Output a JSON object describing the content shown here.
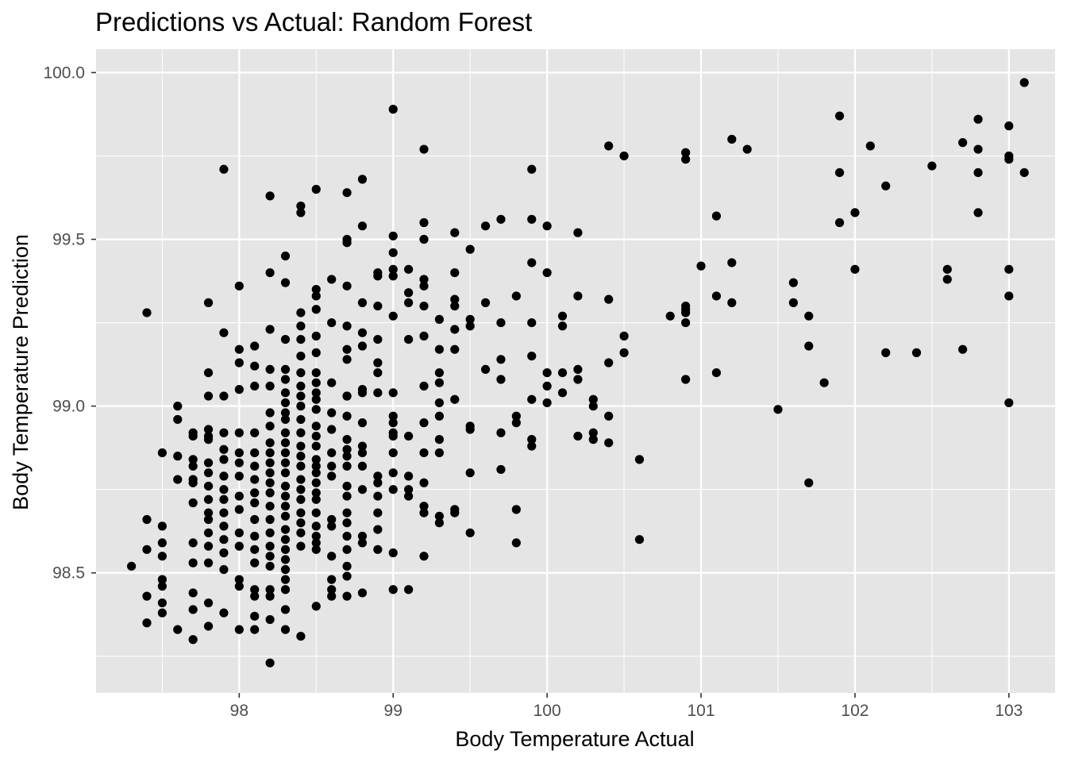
{
  "chart_data": {
    "type": "scatter",
    "title": "Predictions vs Actual: Random Forest",
    "xlabel": "Body Temperature Actual",
    "ylabel": "Body Temperature Prediction",
    "xlim": [
      97.07,
      103.3
    ],
    "ylim": [
      98.14,
      100.07
    ],
    "x_ticks": [
      98,
      99,
      100,
      101,
      102,
      103
    ],
    "x_tick_labels": [
      "98",
      "99",
      "100",
      "101",
      "102",
      "103"
    ],
    "y_ticks": [
      98.5,
      99.0,
      99.5,
      100.0
    ],
    "y_tick_labels": [
      "98.5",
      "99.0",
      "99.5",
      "100.0"
    ],
    "grid": true,
    "background": "#e5e5e5",
    "grid_color": "#ffffff",
    "point_color": "#000000",
    "points": [
      [
        97.3,
        98.52
      ],
      [
        97.4,
        99.28
      ],
      [
        97.4,
        98.66
      ],
      [
        97.4,
        98.57
      ],
      [
        97.4,
        98.43
      ],
      [
        97.4,
        98.35
      ],
      [
        97.5,
        98.86
      ],
      [
        97.5,
        98.64
      ],
      [
        97.5,
        98.59
      ],
      [
        97.5,
        98.55
      ],
      [
        97.5,
        98.48
      ],
      [
        97.5,
        98.46
      ],
      [
        97.5,
        98.41
      ],
      [
        97.5,
        98.38
      ],
      [
        97.6,
        99.0
      ],
      [
        97.6,
        98.96
      ],
      [
        97.6,
        98.85
      ],
      [
        97.6,
        98.78
      ],
      [
        97.6,
        98.33
      ],
      [
        97.7,
        98.92
      ],
      [
        97.7,
        98.91
      ],
      [
        97.7,
        98.84
      ],
      [
        97.7,
        98.82
      ],
      [
        97.7,
        98.78
      ],
      [
        97.7,
        98.77
      ],
      [
        97.7,
        98.71
      ],
      [
        97.7,
        98.59
      ],
      [
        97.7,
        98.53
      ],
      [
        97.7,
        98.44
      ],
      [
        97.7,
        98.39
      ],
      [
        97.7,
        98.3
      ],
      [
        97.8,
        99.31
      ],
      [
        97.8,
        99.1
      ],
      [
        97.8,
        99.03
      ],
      [
        97.8,
        98.93
      ],
      [
        97.8,
        98.91
      ],
      [
        97.8,
        98.9
      ],
      [
        97.8,
        98.83
      ],
      [
        97.8,
        98.8
      ],
      [
        97.8,
        98.76
      ],
      [
        97.8,
        98.72
      ],
      [
        97.8,
        98.68
      ],
      [
        97.8,
        98.66
      ],
      [
        97.8,
        98.62
      ],
      [
        97.8,
        98.58
      ],
      [
        97.8,
        98.53
      ],
      [
        97.8,
        98.41
      ],
      [
        97.8,
        98.34
      ],
      [
        97.9,
        99.71
      ],
      [
        97.9,
        99.22
      ],
      [
        97.9,
        99.03
      ],
      [
        97.9,
        98.92
      ],
      [
        97.9,
        98.87
      ],
      [
        97.9,
        98.84
      ],
      [
        97.9,
        98.79
      ],
      [
        97.9,
        98.75
      ],
      [
        97.9,
        98.72
      ],
      [
        97.9,
        98.68
      ],
      [
        97.9,
        98.64
      ],
      [
        97.9,
        98.6
      ],
      [
        97.9,
        98.56
      ],
      [
        97.9,
        98.51
      ],
      [
        97.9,
        98.38
      ],
      [
        98.0,
        99.36
      ],
      [
        98.0,
        99.17
      ],
      [
        98.0,
        99.13
      ],
      [
        98.0,
        99.05
      ],
      [
        98.0,
        98.92
      ],
      [
        98.0,
        98.86
      ],
      [
        98.0,
        98.83
      ],
      [
        98.0,
        98.79
      ],
      [
        98.0,
        98.73
      ],
      [
        98.0,
        98.69
      ],
      [
        98.0,
        98.62
      ],
      [
        98.0,
        98.58
      ],
      [
        98.0,
        98.48
      ],
      [
        98.0,
        98.46
      ],
      [
        98.0,
        98.33
      ],
      [
        98.1,
        99.18
      ],
      [
        98.1,
        99.12
      ],
      [
        98.1,
        99.06
      ],
      [
        98.1,
        98.92
      ],
      [
        98.1,
        98.86
      ],
      [
        98.1,
        98.82
      ],
      [
        98.1,
        98.78
      ],
      [
        98.1,
        98.74
      ],
      [
        98.1,
        98.71
      ],
      [
        98.1,
        98.66
      ],
      [
        98.1,
        98.61
      ],
      [
        98.1,
        98.57
      ],
      [
        98.1,
        98.53
      ],
      [
        98.1,
        98.45
      ],
      [
        98.1,
        98.43
      ],
      [
        98.1,
        98.37
      ],
      [
        98.1,
        98.33
      ],
      [
        98.2,
        99.63
      ],
      [
        98.2,
        99.4
      ],
      [
        98.2,
        99.23
      ],
      [
        98.2,
        99.11
      ],
      [
        98.2,
        99.06
      ],
      [
        98.2,
        98.98
      ],
      [
        98.2,
        98.94
      ],
      [
        98.2,
        98.89
      ],
      [
        98.2,
        98.86
      ],
      [
        98.2,
        98.83
      ],
      [
        98.2,
        98.8
      ],
      [
        98.2,
        98.77
      ],
      [
        98.2,
        98.74
      ],
      [
        98.2,
        98.7
      ],
      [
        98.2,
        98.66
      ],
      [
        98.2,
        98.62
      ],
      [
        98.2,
        98.58
      ],
      [
        98.2,
        98.55
      ],
      [
        98.2,
        98.52
      ],
      [
        98.2,
        98.45
      ],
      [
        98.2,
        98.43
      ],
      [
        98.2,
        98.36
      ],
      [
        98.2,
        98.23
      ],
      [
        98.3,
        99.45
      ],
      [
        98.3,
        99.37
      ],
      [
        98.3,
        99.2
      ],
      [
        98.3,
        99.11
      ],
      [
        98.3,
        99.08
      ],
      [
        98.3,
        99.04
      ],
      [
        98.3,
        99.01
      ],
      [
        98.3,
        98.98
      ],
      [
        98.3,
        98.96
      ],
      [
        98.3,
        98.92
      ],
      [
        98.3,
        98.89
      ],
      [
        98.3,
        98.86
      ],
      [
        98.3,
        98.83
      ],
      [
        98.3,
        98.8
      ],
      [
        98.3,
        98.76
      ],
      [
        98.3,
        98.73
      ],
      [
        98.3,
        98.7
      ],
      [
        98.3,
        98.67
      ],
      [
        98.3,
        98.63
      ],
      [
        98.3,
        98.6
      ],
      [
        98.3,
        98.57
      ],
      [
        98.3,
        98.54
      ],
      [
        98.3,
        98.51
      ],
      [
        98.3,
        98.48
      ],
      [
        98.3,
        98.45
      ],
      [
        98.3,
        98.39
      ],
      [
        98.3,
        98.33
      ],
      [
        98.4,
        99.6
      ],
      [
        98.4,
        99.58
      ],
      [
        98.4,
        99.28
      ],
      [
        98.4,
        99.24
      ],
      [
        98.4,
        99.2
      ],
      [
        98.4,
        99.15
      ],
      [
        98.4,
        99.1
      ],
      [
        98.4,
        99.06
      ],
      [
        98.4,
        99.03
      ],
      [
        98.4,
        99.0
      ],
      [
        98.4,
        98.96
      ],
      [
        98.4,
        98.92
      ],
      [
        98.4,
        98.88
      ],
      [
        98.4,
        98.85
      ],
      [
        98.4,
        98.82
      ],
      [
        98.4,
        98.78
      ],
      [
        98.4,
        98.75
      ],
      [
        98.4,
        98.72
      ],
      [
        98.4,
        98.68
      ],
      [
        98.4,
        98.65
      ],
      [
        98.4,
        98.62
      ],
      [
        98.4,
        98.58
      ],
      [
        98.4,
        98.31
      ],
      [
        98.5,
        99.65
      ],
      [
        98.5,
        99.35
      ],
      [
        98.5,
        99.33
      ],
      [
        98.5,
        99.29
      ],
      [
        98.5,
        99.21
      ],
      [
        98.5,
        99.16
      ],
      [
        98.5,
        99.1
      ],
      [
        98.5,
        99.07
      ],
      [
        98.5,
        99.04
      ],
      [
        98.5,
        99.02
      ],
      [
        98.5,
        98.99
      ],
      [
        98.5,
        98.94
      ],
      [
        98.5,
        98.91
      ],
      [
        98.5,
        98.88
      ],
      [
        98.5,
        98.84
      ],
      [
        98.5,
        98.82
      ],
      [
        98.5,
        98.8
      ],
      [
        98.5,
        98.77
      ],
      [
        98.5,
        98.74
      ],
      [
        98.5,
        98.72
      ],
      [
        98.5,
        98.68
      ],
      [
        98.5,
        98.64
      ],
      [
        98.5,
        98.61
      ],
      [
        98.5,
        98.59
      ],
      [
        98.5,
        98.57
      ],
      [
        98.5,
        98.4
      ],
      [
        98.6,
        99.38
      ],
      [
        98.6,
        99.25
      ],
      [
        98.6,
        99.07
      ],
      [
        98.6,
        98.98
      ],
      [
        98.6,
        98.93
      ],
      [
        98.6,
        98.86
      ],
      [
        98.6,
        98.82
      ],
      [
        98.6,
        98.79
      ],
      [
        98.6,
        98.66
      ],
      [
        98.6,
        98.64
      ],
      [
        98.6,
        98.55
      ],
      [
        98.6,
        98.48
      ],
      [
        98.6,
        98.45
      ],
      [
        98.6,
        98.43
      ],
      [
        98.7,
        99.64
      ],
      [
        98.7,
        99.5
      ],
      [
        98.7,
        99.49
      ],
      [
        98.7,
        99.36
      ],
      [
        98.7,
        99.24
      ],
      [
        98.7,
        99.17
      ],
      [
        98.7,
        99.14
      ],
      [
        98.7,
        99.03
      ],
      [
        98.7,
        99.03
      ],
      [
        98.7,
        98.97
      ],
      [
        98.7,
        98.9
      ],
      [
        98.7,
        98.87
      ],
      [
        98.7,
        98.85
      ],
      [
        98.7,
        98.82
      ],
      [
        98.7,
        98.76
      ],
      [
        98.7,
        98.73
      ],
      [
        98.7,
        98.68
      ],
      [
        98.7,
        98.65
      ],
      [
        98.7,
        98.61
      ],
      [
        98.7,
        98.57
      ],
      [
        98.7,
        98.52
      ],
      [
        98.7,
        98.49
      ],
      [
        98.7,
        98.43
      ],
      [
        98.8,
        99.68
      ],
      [
        98.8,
        99.54
      ],
      [
        98.8,
        99.31
      ],
      [
        98.8,
        99.22
      ],
      [
        98.8,
        99.18
      ],
      [
        98.8,
        99.05
      ],
      [
        98.8,
        99.04
      ],
      [
        98.8,
        98.95
      ],
      [
        98.8,
        98.88
      ],
      [
        98.8,
        98.86
      ],
      [
        98.8,
        98.82
      ],
      [
        98.8,
        98.75
      ],
      [
        98.8,
        98.61
      ],
      [
        98.8,
        98.59
      ],
      [
        98.8,
        98.44
      ],
      [
        98.9,
        99.4
      ],
      [
        98.9,
        99.39
      ],
      [
        98.9,
        99.3
      ],
      [
        98.9,
        99.2
      ],
      [
        98.9,
        99.13
      ],
      [
        98.9,
        99.1
      ],
      [
        98.9,
        99.04
      ],
      [
        98.9,
        98.79
      ],
      [
        98.9,
        98.77
      ],
      [
        98.9,
        98.73
      ],
      [
        98.9,
        98.68
      ],
      [
        98.9,
        98.63
      ],
      [
        98.9,
        98.57
      ],
      [
        99.0,
        99.89
      ],
      [
        99.0,
        99.51
      ],
      [
        99.0,
        99.46
      ],
      [
        99.0,
        99.41
      ],
      [
        99.0,
        99.39
      ],
      [
        99.0,
        99.27
      ],
      [
        99.0,
        99.04
      ],
      [
        99.0,
        98.97
      ],
      [
        99.0,
        98.95
      ],
      [
        99.0,
        98.92
      ],
      [
        99.0,
        98.91
      ],
      [
        99.0,
        98.86
      ],
      [
        99.0,
        98.8
      ],
      [
        99.0,
        98.75
      ],
      [
        99.0,
        98.56
      ],
      [
        99.0,
        98.45
      ],
      [
        99.1,
        99.41
      ],
      [
        99.1,
        99.34
      ],
      [
        99.1,
        99.31
      ],
      [
        99.1,
        99.2
      ],
      [
        99.1,
        98.91
      ],
      [
        99.1,
        98.79
      ],
      [
        99.1,
        98.75
      ],
      [
        99.1,
        98.73
      ],
      [
        99.1,
        98.45
      ],
      [
        99.2,
        99.77
      ],
      [
        99.2,
        99.55
      ],
      [
        99.2,
        99.5
      ],
      [
        99.2,
        99.38
      ],
      [
        99.2,
        99.36
      ],
      [
        99.2,
        99.3
      ],
      [
        99.2,
        99.21
      ],
      [
        99.2,
        99.06
      ],
      [
        99.2,
        98.95
      ],
      [
        99.2,
        98.86
      ],
      [
        99.2,
        98.77
      ],
      [
        99.2,
        98.7
      ],
      [
        99.2,
        98.68
      ],
      [
        99.2,
        98.55
      ],
      [
        99.3,
        99.26
      ],
      [
        99.3,
        99.17
      ],
      [
        99.3,
        99.1
      ],
      [
        99.3,
        99.07
      ],
      [
        99.3,
        99.01
      ],
      [
        99.3,
        98.97
      ],
      [
        99.3,
        98.9
      ],
      [
        99.3,
        98.86
      ],
      [
        99.3,
        98.67
      ],
      [
        99.3,
        98.65
      ],
      [
        99.4,
        99.52
      ],
      [
        99.4,
        99.4
      ],
      [
        99.4,
        99.32
      ],
      [
        99.4,
        99.3
      ],
      [
        99.4,
        99.23
      ],
      [
        99.4,
        99.17
      ],
      [
        99.4,
        99.02
      ],
      [
        99.4,
        98.69
      ],
      [
        99.4,
        98.68
      ],
      [
        99.5,
        99.47
      ],
      [
        99.5,
        99.26
      ],
      [
        99.5,
        99.24
      ],
      [
        99.5,
        98.94
      ],
      [
        99.5,
        98.93
      ],
      [
        99.5,
        98.8
      ],
      [
        99.5,
        98.62
      ],
      [
        99.6,
        99.54
      ],
      [
        99.6,
        99.31
      ],
      [
        99.6,
        99.11
      ],
      [
        99.7,
        99.56
      ],
      [
        99.7,
        99.25
      ],
      [
        99.7,
        99.14
      ],
      [
        99.7,
        99.08
      ],
      [
        99.7,
        98.92
      ],
      [
        99.7,
        98.81
      ],
      [
        99.8,
        99.33
      ],
      [
        99.8,
        98.97
      ],
      [
        99.8,
        98.95
      ],
      [
        99.8,
        98.69
      ],
      [
        99.8,
        98.59
      ],
      [
        99.9,
        99.71
      ],
      [
        99.9,
        99.56
      ],
      [
        99.9,
        99.43
      ],
      [
        99.9,
        99.25
      ],
      [
        99.9,
        99.15
      ],
      [
        99.9,
        99.02
      ],
      [
        99.9,
        98.9
      ],
      [
        99.9,
        98.88
      ],
      [
        100.0,
        99.54
      ],
      [
        100.0,
        99.4
      ],
      [
        100.0,
        99.1
      ],
      [
        100.0,
        99.06
      ],
      [
        100.0,
        99.01
      ],
      [
        100.1,
        99.27
      ],
      [
        100.1,
        99.24
      ],
      [
        100.1,
        99.1
      ],
      [
        100.1,
        99.04
      ],
      [
        100.2,
        99.52
      ],
      [
        100.2,
        99.33
      ],
      [
        100.2,
        99.11
      ],
      [
        100.2,
        99.08
      ],
      [
        100.2,
        98.91
      ],
      [
        100.3,
        99.02
      ],
      [
        100.3,
        99.0
      ],
      [
        100.3,
        98.92
      ],
      [
        100.3,
        98.9
      ],
      [
        100.4,
        99.78
      ],
      [
        100.4,
        99.32
      ],
      [
        100.4,
        99.13
      ],
      [
        100.4,
        98.97
      ],
      [
        100.4,
        98.89
      ],
      [
        100.5,
        99.75
      ],
      [
        100.5,
        99.21
      ],
      [
        100.5,
        99.16
      ],
      [
        100.6,
        98.84
      ],
      [
        100.6,
        98.6
      ],
      [
        100.8,
        99.27
      ],
      [
        100.9,
        99.76
      ],
      [
        100.9,
        99.74
      ],
      [
        100.9,
        99.3
      ],
      [
        100.9,
        99.29
      ],
      [
        100.9,
        99.28
      ],
      [
        100.9,
        99.25
      ],
      [
        100.9,
        99.08
      ],
      [
        101.0,
        99.42
      ],
      [
        101.1,
        99.57
      ],
      [
        101.1,
        99.33
      ],
      [
        101.1,
        99.1
      ],
      [
        101.2,
        99.8
      ],
      [
        101.2,
        99.43
      ],
      [
        101.2,
        99.31
      ],
      [
        101.3,
        99.77
      ],
      [
        101.5,
        98.99
      ],
      [
        101.6,
        99.37
      ],
      [
        101.6,
        99.31
      ],
      [
        101.7,
        99.27
      ],
      [
        101.7,
        99.18
      ],
      [
        101.7,
        98.77
      ],
      [
        101.8,
        99.07
      ],
      [
        101.9,
        99.87
      ],
      [
        101.9,
        99.7
      ],
      [
        101.9,
        99.55
      ],
      [
        102.0,
        99.58
      ],
      [
        102.0,
        99.41
      ],
      [
        102.1,
        99.78
      ],
      [
        102.2,
        99.66
      ],
      [
        102.2,
        99.16
      ],
      [
        102.4,
        99.16
      ],
      [
        102.5,
        99.72
      ],
      [
        102.6,
        99.41
      ],
      [
        102.6,
        99.38
      ],
      [
        102.7,
        99.79
      ],
      [
        102.7,
        99.17
      ],
      [
        102.8,
        99.86
      ],
      [
        102.8,
        99.77
      ],
      [
        102.8,
        99.7
      ],
      [
        102.8,
        99.58
      ],
      [
        103.0,
        99.84
      ],
      [
        103.0,
        99.75
      ],
      [
        103.0,
        99.74
      ],
      [
        103.0,
        99.41
      ],
      [
        103.0,
        99.33
      ],
      [
        103.0,
        99.01
      ],
      [
        103.1,
        99.97
      ],
      [
        103.1,
        99.7
      ]
    ]
  }
}
